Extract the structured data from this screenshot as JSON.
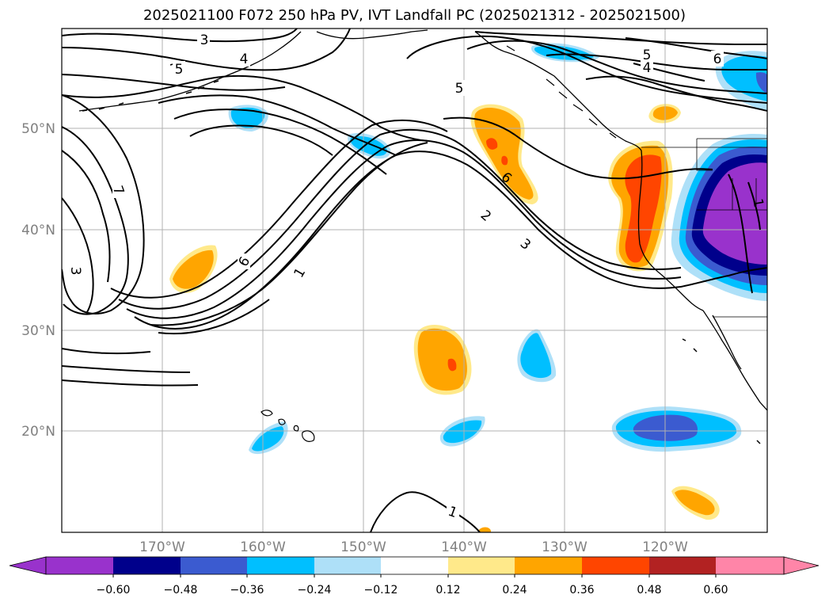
{
  "title": "2025021100 F072 250 hPa PV, IVT Landfall PC (2025021312 - 2025021500)",
  "lat_labels": [
    "50°N",
    "40°N",
    "30°N",
    "20°N"
  ],
  "lon_labels": [
    "170°W",
    "160°W",
    "150°W",
    "140°W",
    "130°W",
    "120°W"
  ],
  "colorbar": {
    "ticks": [
      "−0.60",
      "−0.48",
      "−0.36",
      "−0.24",
      "−0.12",
      "0.12",
      "0.24",
      "0.36",
      "0.48",
      "0.60"
    ],
    "colors": [
      "#9932cc",
      "#00008b",
      "#3b5bd0",
      "#00bfff",
      "#aee0f8",
      "#ffffff",
      "#ffe98a",
      "#ffa500",
      "#ff4500",
      "#b22222",
      "#ff85a8"
    ]
  },
  "contour_labels": [
    "3",
    "4",
    "5",
    "5",
    "4",
    "6",
    "5",
    "7",
    "6",
    "1",
    "3",
    "2",
    "3",
    "6",
    "1",
    "1"
  ],
  "colors": {
    "grid": "#b0b0b0",
    "contour": "#000000",
    "coast": "#000000"
  }
}
